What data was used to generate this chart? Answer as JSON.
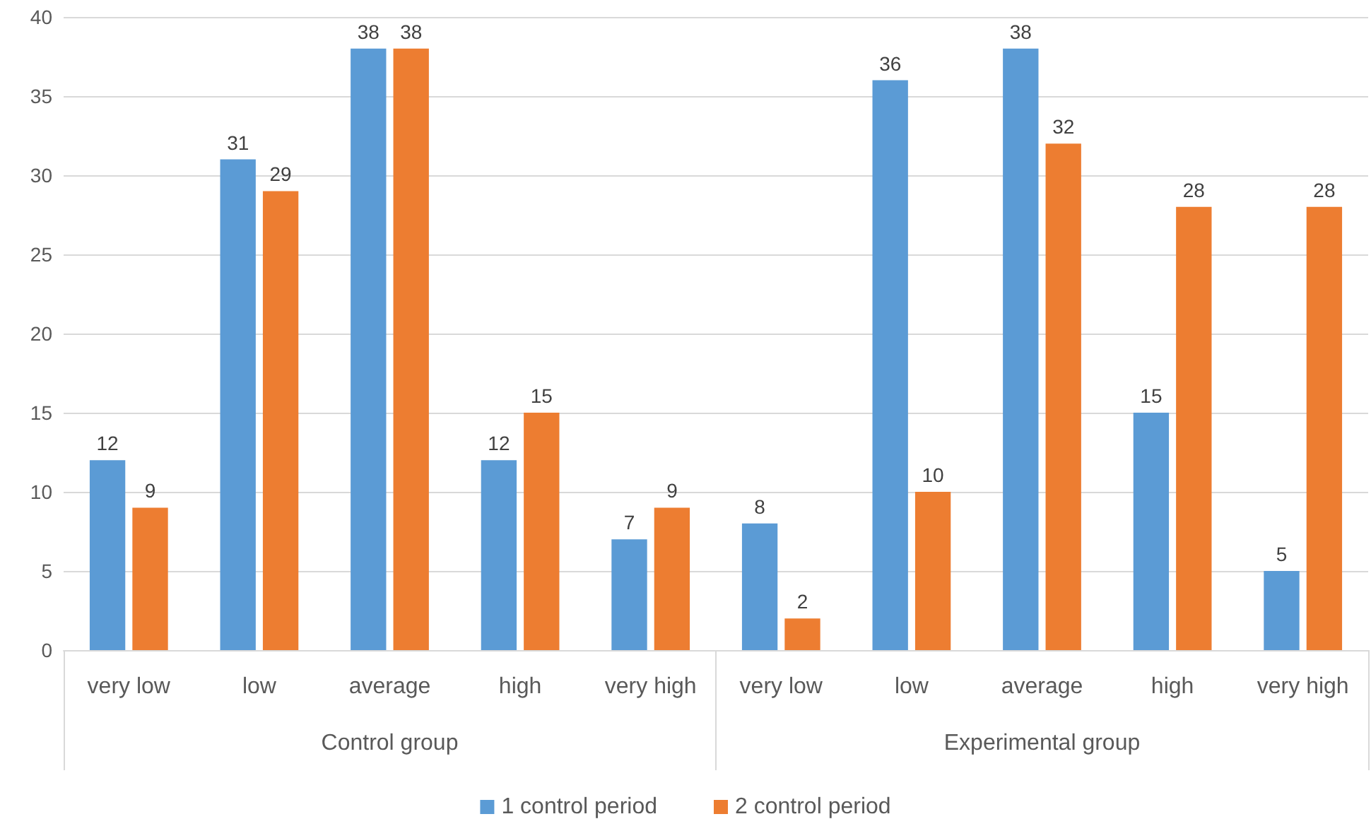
{
  "chart_data": {
    "type": "bar",
    "categories": [
      "very low",
      "low",
      "average",
      "high",
      "very high",
      "very low",
      "low",
      "average",
      "high",
      "very high"
    ],
    "series": [
      {
        "name": "1 control period",
        "color": "#5b9bd5",
        "values": [
          12,
          31,
          38,
          12,
          7,
          8,
          36,
          38,
          15,
          5
        ]
      },
      {
        "name": "2 control period",
        "color": "#ed7d31",
        "values": [
          9,
          29,
          38,
          15,
          9,
          2,
          10,
          32,
          28,
          28
        ]
      }
    ],
    "annotations": [
      "Control group",
      "Experimental group"
    ],
    "ylim": [
      0,
      40
    ],
    "yticks": [
      0,
      5,
      10,
      15,
      20,
      25,
      30,
      35,
      40
    ],
    "grid": "y",
    "legend": "bottom",
    "data_labels": true
  }
}
